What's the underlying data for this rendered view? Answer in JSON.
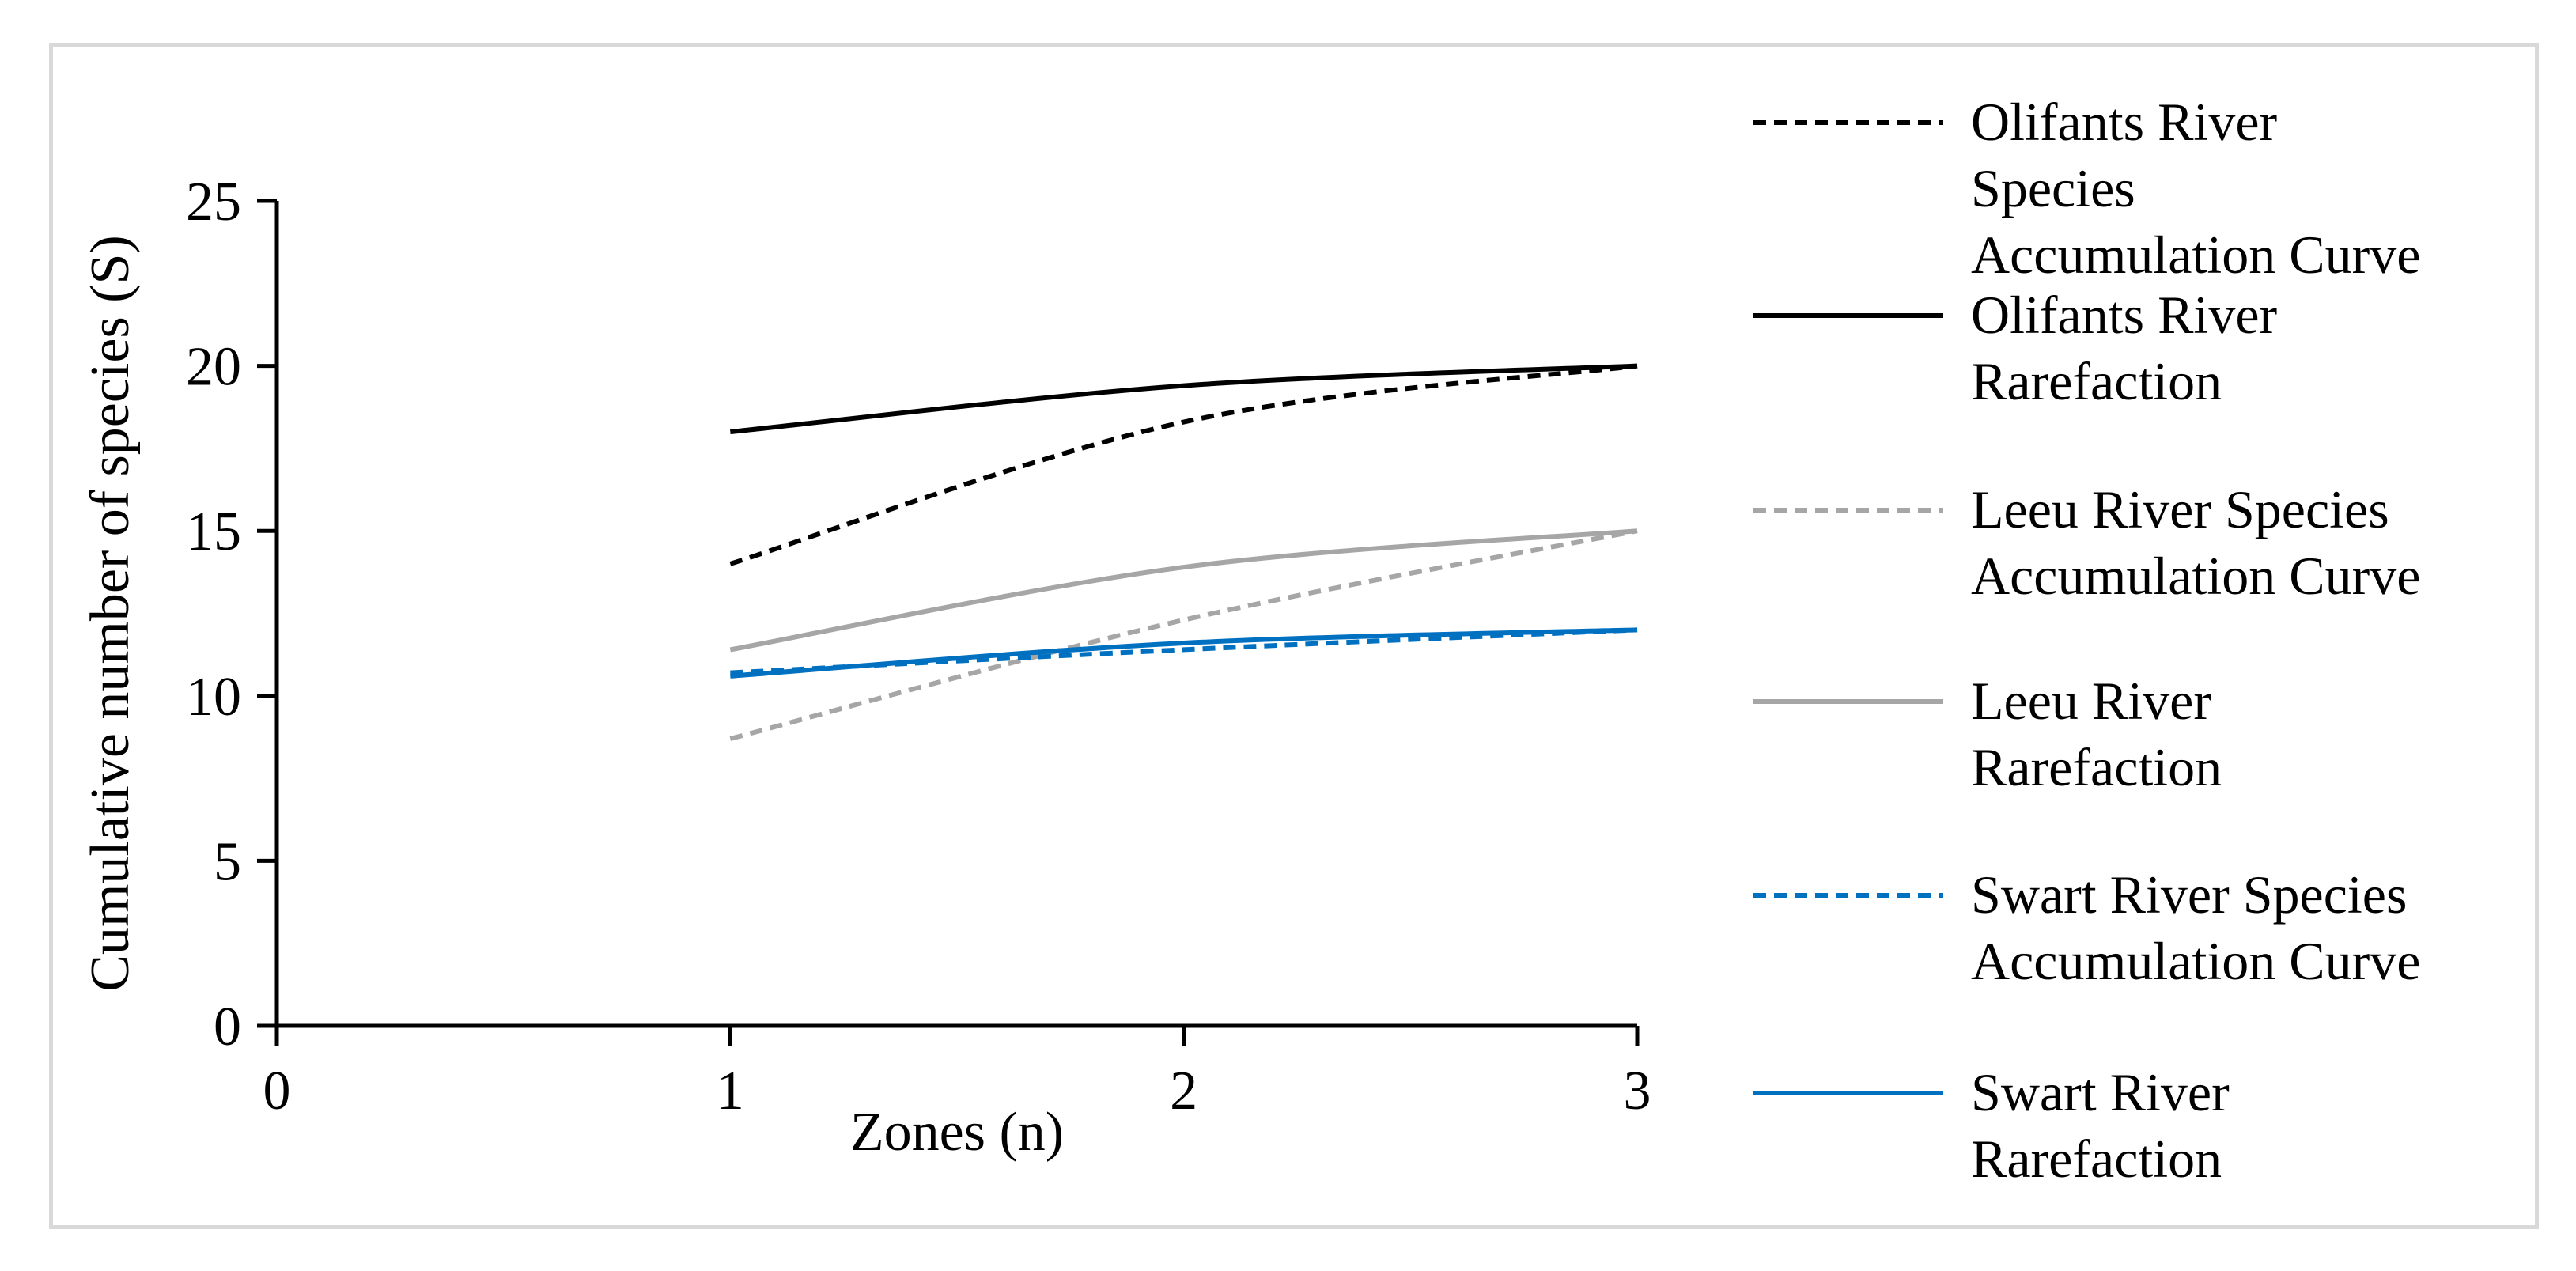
{
  "chart_data": {
    "type": "line",
    "title": "",
    "xlabel": "Zones (n)",
    "ylabel": "Cumulative number of species (S)",
    "xlim": [
      0,
      3
    ],
    "ylim": [
      0,
      25
    ],
    "x_ticks": [
      "0",
      "1",
      "2",
      "3"
    ],
    "y_ticks": [
      "0",
      "5",
      "10",
      "15",
      "20",
      "25"
    ],
    "grid": false,
    "legend_position": "right",
    "x": [
      1,
      2,
      3
    ],
    "series": [
      {
        "name": "Olifants River Species Accumulation Curve",
        "legend_lines": [
          "Olifants River",
          "Species",
          "Accumulation Curve"
        ],
        "color": "#000000",
        "dashed": true,
        "values": [
          14,
          18.3,
          20
        ]
      },
      {
        "name": "Olifants River Rarefaction",
        "legend_lines": [
          "Olifants River",
          "Rarefaction"
        ],
        "color": "#000000",
        "dashed": false,
        "values": [
          18,
          19.4,
          20
        ]
      },
      {
        "name": "Leeu River Species Accumulation Curve",
        "legend_lines": [
          "Leeu River Species",
          "Accumulation Curve"
        ],
        "color": "#a6a6a6",
        "dashed": true,
        "values": [
          8.7,
          12.3,
          15
        ]
      },
      {
        "name": "Leeu River Rarefaction",
        "legend_lines": [
          "Leeu River",
          "Rarefaction"
        ],
        "color": "#a6a6a6",
        "dashed": false,
        "values": [
          11.4,
          13.9,
          15
        ]
      },
      {
        "name": "Swart River Species Accumulation Curve",
        "legend_lines": [
          "Swart River Species",
          "Accumulation Curve"
        ],
        "color": "#0070c0",
        "dashed": true,
        "values": [
          10.7,
          11.4,
          12
        ]
      },
      {
        "name": "Swart River Rarefaction",
        "legend_lines": [
          "Swart River",
          "Rarefaction"
        ],
        "color": "#0070c0",
        "dashed": false,
        "values": [
          10.6,
          11.6,
          12
        ]
      }
    ]
  }
}
